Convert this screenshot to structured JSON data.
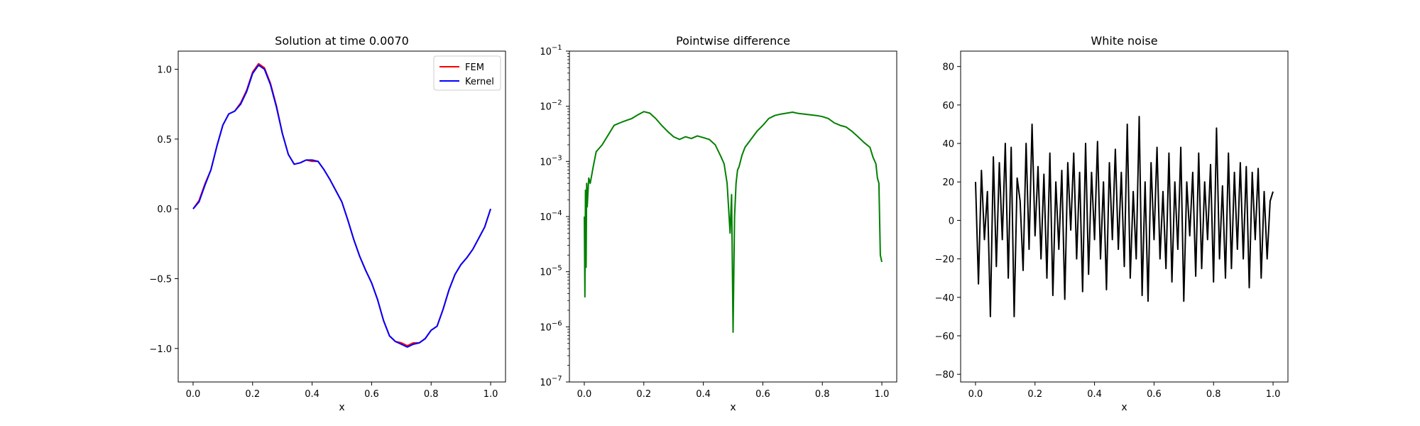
{
  "chart_data": [
    {
      "type": "line",
      "title": "Solution at time 0.0070",
      "xlabel": "x",
      "ylabel": "",
      "xlim": [
        -0.05,
        1.05
      ],
      "ylim": [
        -1.24,
        1.13
      ],
      "xticks": [
        "0.0",
        "0.2",
        "0.4",
        "0.6",
        "0.8",
        "1.0"
      ],
      "yticks": [
        "−1.0",
        "−0.5",
        "0.0",
        "0.5",
        "1.0"
      ],
      "legend": "top-right",
      "series": [
        {
          "name": "FEM",
          "color": "#ff0000",
          "x": [
            0.0,
            0.02,
            0.04,
            0.06,
            0.08,
            0.1,
            0.12,
            0.14,
            0.16,
            0.18,
            0.2,
            0.22,
            0.24,
            0.26,
            0.28,
            0.3,
            0.32,
            0.34,
            0.36,
            0.38,
            0.4,
            0.42,
            0.44,
            0.46,
            0.48,
            0.5,
            0.52,
            0.54,
            0.56,
            0.58,
            0.6,
            0.62,
            0.64,
            0.66,
            0.68,
            0.7,
            0.72,
            0.74,
            0.76,
            0.78,
            0.8,
            0.82,
            0.84,
            0.86,
            0.88,
            0.9,
            0.92,
            0.94,
            0.96,
            0.98,
            1.0
          ],
          "y": [
            0.0,
            0.06,
            0.18,
            0.28,
            0.45,
            0.6,
            0.68,
            0.7,
            0.76,
            0.85,
            0.98,
            1.04,
            1.01,
            0.9,
            0.74,
            0.54,
            0.39,
            0.32,
            0.33,
            0.35,
            0.34,
            0.34,
            0.28,
            0.21,
            0.13,
            0.05,
            -0.08,
            -0.22,
            -0.34,
            -0.44,
            -0.53,
            -0.65,
            -0.8,
            -0.91,
            -0.95,
            -0.96,
            -0.98,
            -0.96,
            -0.96,
            -0.93,
            -0.87,
            -0.84,
            -0.72,
            -0.58,
            -0.47,
            -0.4,
            -0.35,
            -0.29,
            -0.21,
            -0.13,
            0.0
          ]
        },
        {
          "name": "Kernel",
          "color": "#0000ff",
          "x": [
            0.0,
            0.02,
            0.04,
            0.06,
            0.08,
            0.1,
            0.12,
            0.14,
            0.16,
            0.18,
            0.2,
            0.22,
            0.24,
            0.26,
            0.28,
            0.3,
            0.32,
            0.34,
            0.36,
            0.38,
            0.4,
            0.42,
            0.44,
            0.46,
            0.48,
            0.5,
            0.52,
            0.54,
            0.56,
            0.58,
            0.6,
            0.62,
            0.64,
            0.66,
            0.68,
            0.7,
            0.72,
            0.74,
            0.76,
            0.78,
            0.8,
            0.82,
            0.84,
            0.86,
            0.88,
            0.9,
            0.92,
            0.94,
            0.96,
            0.98,
            1.0
          ],
          "y": [
            0.0,
            0.05,
            0.17,
            0.28,
            0.45,
            0.6,
            0.68,
            0.7,
            0.75,
            0.84,
            0.97,
            1.03,
            1.0,
            0.89,
            0.73,
            0.54,
            0.39,
            0.32,
            0.33,
            0.35,
            0.35,
            0.34,
            0.28,
            0.21,
            0.13,
            0.05,
            -0.08,
            -0.22,
            -0.34,
            -0.44,
            -0.53,
            -0.65,
            -0.8,
            -0.91,
            -0.95,
            -0.97,
            -0.99,
            -0.97,
            -0.96,
            -0.93,
            -0.87,
            -0.84,
            -0.72,
            -0.58,
            -0.47,
            -0.4,
            -0.35,
            -0.29,
            -0.21,
            -0.13,
            0.0
          ]
        }
      ]
    },
    {
      "type": "line",
      "title": "Pointwise difference",
      "xlabel": "x",
      "ylabel": "",
      "yscale": "log",
      "xlim": [
        -0.05,
        1.05
      ],
      "ylim": [
        1e-07,
        0.1
      ],
      "xticks": [
        "0.0",
        "0.2",
        "0.4",
        "0.6",
        "0.8",
        "1.0"
      ],
      "yticks": [
        {
          "base": "10",
          "exp": "−7"
        },
        {
          "base": "10",
          "exp": "−6"
        },
        {
          "base": "10",
          "exp": "−5"
        },
        {
          "base": "10",
          "exp": "−4"
        },
        {
          "base": "10",
          "exp": "−3"
        },
        {
          "base": "10",
          "exp": "−2"
        },
        {
          "base": "10",
          "exp": "−1"
        }
      ],
      "series": [
        {
          "name": "",
          "color": "#008000",
          "x": [
            0.0,
            0.002,
            0.004,
            0.006,
            0.008,
            0.01,
            0.015,
            0.02,
            0.03,
            0.04,
            0.06,
            0.08,
            0.1,
            0.12,
            0.14,
            0.16,
            0.18,
            0.2,
            0.22,
            0.24,
            0.26,
            0.28,
            0.3,
            0.32,
            0.34,
            0.36,
            0.38,
            0.4,
            0.42,
            0.44,
            0.46,
            0.47,
            0.48,
            0.49,
            0.495,
            0.5,
            0.505,
            0.51,
            0.515,
            0.52,
            0.53,
            0.54,
            0.56,
            0.58,
            0.6,
            0.62,
            0.64,
            0.66,
            0.68,
            0.7,
            0.72,
            0.74,
            0.76,
            0.78,
            0.8,
            0.82,
            0.84,
            0.86,
            0.88,
            0.9,
            0.92,
            0.94,
            0.96,
            0.97,
            0.98,
            0.985,
            0.99,
            0.995,
            1.0
          ],
          "y": [
            0.0001,
            3.5e-06,
            0.0003,
            1.2e-05,
            0.0004,
            0.00015,
            0.0005,
            0.0004,
            0.0008,
            0.0015,
            0.002,
            0.003,
            0.0045,
            0.005,
            0.0055,
            0.006,
            0.007,
            0.008,
            0.0075,
            0.006,
            0.0045,
            0.0035,
            0.0028,
            0.0025,
            0.0028,
            0.0026,
            0.0029,
            0.0027,
            0.0025,
            0.002,
            0.0012,
            0.0009,
            0.0004,
            5e-05,
            0.00025,
            8e-07,
            0.0001,
            0.0004,
            0.0007,
            0.0008,
            0.0013,
            0.0018,
            0.0025,
            0.0035,
            0.0045,
            0.006,
            0.0068,
            0.0072,
            0.0075,
            0.0078,
            0.0074,
            0.0072,
            0.007,
            0.0068,
            0.0065,
            0.006,
            0.005,
            0.0045,
            0.0042,
            0.0035,
            0.0028,
            0.0022,
            0.0018,
            0.0012,
            0.0009,
            0.0005,
            0.0004,
            2e-05,
            1.5e-05
          ]
        }
      ]
    },
    {
      "type": "line",
      "title": "White noise",
      "xlabel": "x",
      "ylabel": "",
      "xlim": [
        -0.05,
        1.05
      ],
      "ylim": [
        -84,
        88
      ],
      "xticks": [
        "0.0",
        "0.2",
        "0.4",
        "0.6",
        "0.8",
        "1.0"
      ],
      "yticks": [
        "−80",
        "−60",
        "−40",
        "−20",
        "0",
        "20",
        "40",
        "60",
        "80"
      ],
      "series": [
        {
          "name": "",
          "color": "#000000",
          "x": [
            0.0,
            0.01,
            0.02,
            0.03,
            0.04,
            0.05,
            0.06,
            0.07,
            0.08,
            0.09,
            0.1,
            0.11,
            0.12,
            0.13,
            0.14,
            0.15,
            0.16,
            0.17,
            0.18,
            0.19,
            0.2,
            0.21,
            0.22,
            0.23,
            0.24,
            0.25,
            0.26,
            0.27,
            0.28,
            0.29,
            0.3,
            0.31,
            0.32,
            0.33,
            0.34,
            0.35,
            0.36,
            0.37,
            0.38,
            0.39,
            0.4,
            0.41,
            0.42,
            0.43,
            0.44,
            0.45,
            0.46,
            0.47,
            0.48,
            0.49,
            0.5,
            0.51,
            0.52,
            0.53,
            0.54,
            0.55,
            0.56,
            0.57,
            0.58,
            0.59,
            0.6,
            0.61,
            0.62,
            0.63,
            0.64,
            0.65,
            0.66,
            0.67,
            0.68,
            0.69,
            0.7,
            0.71,
            0.72,
            0.73,
            0.74,
            0.75,
            0.76,
            0.77,
            0.78,
            0.79,
            0.8,
            0.81,
            0.82,
            0.83,
            0.84,
            0.85,
            0.86,
            0.87,
            0.88,
            0.89,
            0.9,
            0.91,
            0.92,
            0.93,
            0.94,
            0.95,
            0.96,
            0.97,
            0.98,
            0.99,
            1.0
          ],
          "y": [
            20,
            -33,
            26,
            -10,
            15,
            -50,
            33,
            -24,
            30,
            -10,
            40,
            -30,
            38,
            -50,
            22,
            10,
            -26,
            40,
            -15,
            50,
            -8,
            28,
            -20,
            24,
            -30,
            35,
            -39,
            20,
            -15,
            26,
            -41,
            30,
            -5,
            35,
            -20,
            25,
            -37,
            40,
            -28,
            25,
            -10,
            41,
            -20,
            20,
            -36,
            30,
            -10,
            37,
            -15,
            25,
            -24,
            50,
            -30,
            15,
            -20,
            54,
            -39,
            20,
            -42,
            30,
            -10,
            38,
            -20,
            15,
            -25,
            35,
            -32,
            20,
            -15,
            38,
            -42,
            20,
            -8,
            25,
            -29,
            35,
            -25,
            20,
            -10,
            29,
            -32,
            48,
            -20,
            18,
            -30,
            35,
            -25,
            25,
            -15,
            30,
            -20,
            28,
            -35,
            25,
            -10,
            27,
            -30,
            15,
            -20,
            10,
            15
          ]
        }
      ]
    }
  ]
}
